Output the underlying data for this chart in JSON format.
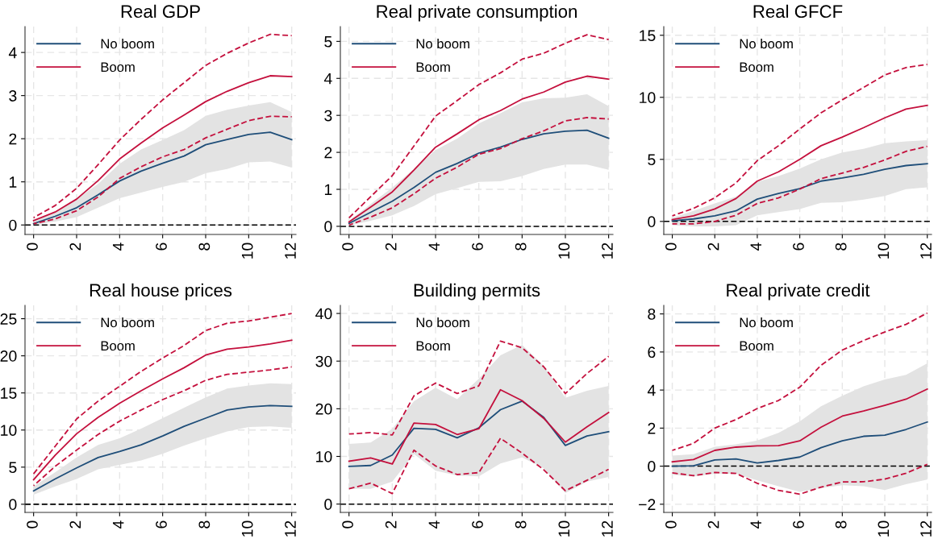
{
  "chart_data": [
    {
      "type": "line",
      "title": "Real GDP",
      "x": [
        0,
        1,
        2,
        3,
        4,
        5,
        6,
        7,
        8,
        9,
        10,
        11,
        12
      ],
      "xlim": [
        -0.4,
        12.2
      ],
      "xticks": [
        0,
        2,
        4,
        6,
        8,
        10,
        12
      ],
      "ylim": [
        -0.22,
        4.6
      ],
      "yticks": [
        0,
        1,
        2,
        3,
        4
      ],
      "grid": true,
      "legend": "top left",
      "ref_lines": [
        {
          "axis": "y",
          "value": 0,
          "color": "#000000",
          "line_style": "dashed"
        }
      ],
      "series": [
        {
          "name": "No boom",
          "color": "#1f4e79",
          "line_style": "solid",
          "values": [
            0.03,
            0.2,
            0.4,
            0.7,
            1.02,
            1.25,
            1.43,
            1.6,
            1.86,
            1.98,
            2.1,
            2.15,
            1.98
          ],
          "lower": [
            0.0,
            0.08,
            0.18,
            0.4,
            0.62,
            0.75,
            0.88,
            1.0,
            1.2,
            1.3,
            1.45,
            1.47,
            1.33
          ],
          "upper": [
            0.08,
            0.3,
            0.6,
            0.95,
            1.42,
            1.75,
            1.97,
            2.2,
            2.53,
            2.67,
            2.77,
            2.85,
            2.62
          ]
        },
        {
          "name": "Boom",
          "color": "#c4103d",
          "line_style": "solid",
          "values": [
            0.1,
            0.3,
            0.6,
            1.03,
            1.53,
            1.9,
            2.25,
            2.55,
            2.86,
            3.1,
            3.3,
            3.46,
            3.44
          ]
        },
        {
          "color": "#c4103d",
          "line_style": "dashed",
          "values": [
            0.17,
            0.45,
            0.85,
            1.4,
            1.97,
            2.45,
            2.9,
            3.3,
            3.7,
            3.98,
            4.22,
            4.42,
            4.39
          ]
        },
        {
          "color": "#c4103d",
          "line_style": "dashed",
          "values": [
            0.03,
            0.14,
            0.33,
            0.65,
            1.08,
            1.35,
            1.58,
            1.75,
            2.02,
            2.22,
            2.42,
            2.52,
            2.51
          ]
        }
      ]
    },
    {
      "type": "line",
      "title": "Real private consumption",
      "x": [
        0,
        1,
        2,
        3,
        4,
        5,
        6,
        7,
        8,
        9,
        10,
        11,
        12
      ],
      "xlim": [
        -0.4,
        12.2
      ],
      "xticks": [
        0,
        2,
        4,
        6,
        8,
        10,
        12
      ],
      "ylim": [
        -0.22,
        5.4
      ],
      "yticks": [
        0,
        1,
        2,
        3,
        4,
        5
      ],
      "grid": true,
      "legend": "top left",
      "ref_lines": [
        {
          "axis": "y",
          "value": 0,
          "color": "#000000",
          "line_style": "dashed"
        }
      ],
      "series": [
        {
          "name": "No boom",
          "color": "#1f4e79",
          "line_style": "solid",
          "values": [
            0.08,
            0.38,
            0.68,
            1.05,
            1.46,
            1.7,
            1.98,
            2.14,
            2.35,
            2.5,
            2.57,
            2.6,
            2.38
          ],
          "lower": [
            0.02,
            0.15,
            0.3,
            0.55,
            0.87,
            1.03,
            1.2,
            1.22,
            1.36,
            1.55,
            1.67,
            1.67,
            1.53
          ],
          "upper": [
            0.15,
            0.6,
            1.05,
            1.55,
            2.06,
            2.37,
            2.78,
            3.06,
            3.35,
            3.46,
            3.48,
            3.57,
            3.25
          ]
        },
        {
          "name": "Boom",
          "color": "#c4103d",
          "line_style": "solid",
          "values": [
            0.12,
            0.52,
            0.93,
            1.52,
            2.14,
            2.5,
            2.88,
            3.13,
            3.44,
            3.63,
            3.9,
            4.06,
            3.98
          ]
        },
        {
          "color": "#c4103d",
          "line_style": "dashed",
          "values": [
            0.23,
            0.8,
            1.37,
            2.17,
            2.98,
            3.4,
            3.83,
            4.15,
            4.52,
            4.68,
            4.95,
            5.18,
            5.05
          ]
        },
        {
          "color": "#c4103d",
          "line_style": "dashed",
          "values": [
            0.03,
            0.25,
            0.5,
            0.88,
            1.3,
            1.6,
            1.95,
            2.1,
            2.37,
            2.58,
            2.85,
            2.94,
            2.9
          ]
        }
      ]
    },
    {
      "type": "line",
      "title": "Real GFCF",
      "x": [
        0,
        1,
        2,
        3,
        4,
        5,
        6,
        7,
        8,
        9,
        10,
        11,
        12
      ],
      "xlim": [
        -0.4,
        12.2
      ],
      "xticks": [
        0,
        2,
        4,
        6,
        8,
        10,
        12
      ],
      "ylim": [
        -1.05,
        15.7
      ],
      "yticks": [
        0,
        5,
        10,
        15
      ],
      "grid": true,
      "legend": "top left",
      "ref_lines": [
        {
          "axis": "y",
          "value": 0,
          "color": "#000000",
          "line_style": "dashed"
        }
      ],
      "series": [
        {
          "name": "No boom",
          "color": "#1f4e79",
          "line_style": "solid",
          "values": [
            0.05,
            0.2,
            0.45,
            0.85,
            1.8,
            2.25,
            2.65,
            3.25,
            3.5,
            3.8,
            4.2,
            4.5,
            4.65
          ],
          "lower": [
            -0.3,
            -0.4,
            -0.4,
            -0.3,
            0.5,
            0.75,
            1.0,
            1.5,
            1.55,
            1.75,
            2.05,
            2.6,
            2.75
          ],
          "upper": [
            0.3,
            0.85,
            1.45,
            2.0,
            3.2,
            3.65,
            4.25,
            5.0,
            5.55,
            5.85,
            6.3,
            6.45,
            6.55
          ]
        },
        {
          "name": "Boom",
          "color": "#c4103d",
          "line_style": "solid",
          "values": [
            0.15,
            0.45,
            1.0,
            1.85,
            3.25,
            4.0,
            5.0,
            6.1,
            6.8,
            7.55,
            8.35,
            9.05,
            9.35
          ]
        },
        {
          "color": "#c4103d",
          "line_style": "dashed",
          "values": [
            0.45,
            1.05,
            1.9,
            3.1,
            4.9,
            6.1,
            7.45,
            8.75,
            9.8,
            10.8,
            11.8,
            12.4,
            12.65
          ]
        },
        {
          "color": "#c4103d",
          "line_style": "dashed",
          "values": [
            -0.2,
            -0.2,
            0.0,
            0.5,
            1.45,
            1.9,
            2.6,
            3.45,
            3.9,
            4.35,
            4.95,
            5.65,
            6.05
          ]
        }
      ]
    },
    {
      "type": "line",
      "title": "Real house prices",
      "x": [
        0,
        1,
        2,
        3,
        4,
        5,
        6,
        7,
        8,
        9,
        10,
        11,
        12
      ],
      "xlim": [
        -0.4,
        12.2
      ],
      "xticks": [
        0,
        2,
        4,
        6,
        8,
        10,
        12
      ],
      "ylim": [
        -1.1,
        26.8
      ],
      "yticks": [
        0,
        5,
        10,
        15,
        20,
        25
      ],
      "grid": true,
      "legend": "top left",
      "ref_lines": [
        {
          "axis": "y",
          "value": 0,
          "color": "#000000",
          "line_style": "dashed"
        }
      ],
      "series": [
        {
          "name": "No boom",
          "color": "#1f4e79",
          "line_style": "solid",
          "values": [
            1.8,
            3.4,
            4.9,
            6.3,
            7.1,
            8.0,
            9.2,
            10.5,
            11.6,
            12.7,
            13.1,
            13.3,
            13.2
          ],
          "lower": [
            1.3,
            2.4,
            3.4,
            4.7,
            5.3,
            5.9,
            6.8,
            7.9,
            8.9,
            9.8,
            10.4,
            10.5,
            10.3
          ],
          "upper": [
            2.4,
            4.3,
            6.3,
            8.0,
            8.9,
            10.2,
            11.6,
            13.0,
            14.4,
            15.6,
            16.0,
            16.3,
            16.2
          ]
        },
        {
          "name": "Boom",
          "color": "#c4103d",
          "line_style": "solid",
          "values": [
            3.3,
            6.6,
            9.5,
            11.7,
            13.6,
            15.3,
            16.9,
            18.4,
            20.1,
            20.9,
            21.2,
            21.6,
            22.1
          ]
        },
        {
          "color": "#c4103d",
          "line_style": "dashed",
          "values": [
            4.1,
            7.8,
            11.5,
            13.9,
            15.9,
            17.9,
            19.7,
            21.4,
            23.4,
            24.4,
            24.7,
            25.2,
            25.7
          ]
        },
        {
          "color": "#c4103d",
          "line_style": "dashed",
          "values": [
            2.5,
            5.1,
            7.3,
            9.4,
            11.2,
            12.7,
            14.1,
            15.3,
            16.7,
            17.5,
            17.8,
            18.1,
            18.5
          ]
        }
      ]
    },
    {
      "type": "line",
      "title": "Building permits",
      "x": [
        0,
        1,
        2,
        3,
        4,
        5,
        6,
        7,
        8,
        9,
        10,
        11,
        12
      ],
      "xlim": [
        -0.4,
        12.2
      ],
      "xticks": [
        0,
        2,
        4,
        6,
        8,
        10,
        12
      ],
      "ylim": [
        -1.75,
        41.7
      ],
      "yticks": [
        0,
        10,
        20,
        30,
        40
      ],
      "grid": true,
      "legend": "top left",
      "ref_lines": [
        {
          "axis": "y",
          "value": 0,
          "color": "#000000",
          "line_style": "dashed"
        }
      ],
      "series": [
        {
          "name": "No boom",
          "color": "#1f4e79",
          "line_style": "solid",
          "values": [
            7.9,
            8.1,
            10.3,
            15.9,
            15.7,
            13.9,
            16.0,
            19.8,
            21.6,
            18.2,
            12.3,
            14.3,
            15.2
          ],
          "lower": [
            3.2,
            3.2,
            4.7,
            10.5,
            7.0,
            6.0,
            5.8,
            8.5,
            9.8,
            7.5,
            2.3,
            4.7,
            5.7
          ],
          "upper": [
            12.6,
            12.9,
            15.8,
            21.6,
            24.4,
            22.0,
            26.3,
            31.2,
            33.4,
            29.0,
            22.3,
            23.8,
            24.8
          ]
        },
        {
          "name": "Boom",
          "color": "#c4103d",
          "line_style": "solid",
          "values": [
            9.0,
            9.7,
            8.4,
            17.0,
            16.7,
            14.6,
            15.8,
            24.0,
            21.7,
            18.0,
            13.0,
            16.2,
            19.2
          ]
        },
        {
          "color": "#c4103d",
          "line_style": "dashed",
          "values": [
            14.7,
            15.0,
            14.5,
            22.7,
            25.4,
            23.2,
            24.8,
            34.2,
            32.8,
            28.8,
            23.2,
            27.4,
            31.0
          ]
        },
        {
          "color": "#c4103d",
          "line_style": "dashed",
          "values": [
            3.2,
            4.4,
            2.2,
            11.3,
            8.0,
            6.2,
            6.6,
            13.8,
            10.7,
            7.2,
            2.8,
            5.0,
            7.3
          ]
        }
      ]
    },
    {
      "type": "line",
      "title": "Real private credit",
      "x": [
        0,
        1,
        2,
        3,
        4,
        5,
        6,
        7,
        8,
        9,
        10,
        11,
        12
      ],
      "xlim": [
        -0.4,
        12.2
      ],
      "xticks": [
        0,
        2,
        4,
        6,
        8,
        10,
        12
      ],
      "ylim": [
        -2.43,
        8.45
      ],
      "yticks": [
        {
          "value": -2,
          "label": "−2"
        },
        0,
        2,
        4,
        6,
        8
      ],
      "grid": true,
      "legend": "top left",
      "ref_lines": [
        {
          "axis": "y",
          "value": 0,
          "color": "#000000",
          "line_style": "dashed"
        }
      ],
      "series": [
        {
          "name": "No boom",
          "color": "#1f4e79",
          "line_style": "solid",
          "values": [
            0.0,
            0.02,
            0.33,
            0.38,
            0.17,
            0.3,
            0.48,
            0.97,
            1.33,
            1.57,
            1.63,
            1.93,
            2.32
          ],
          "lower": [
            -0.45,
            -0.55,
            -0.4,
            -0.4,
            -0.75,
            -1.05,
            -1.35,
            -1.15,
            -1.0,
            -1.05,
            -1.25,
            -0.95,
            -0.7
          ],
          "upper": [
            0.55,
            0.63,
            1.02,
            1.15,
            1.35,
            1.75,
            2.35,
            3.15,
            3.7,
            4.2,
            4.55,
            4.8,
            5.4
          ]
        },
        {
          "name": "Boom",
          "color": "#c4103d",
          "line_style": "solid",
          "values": [
            0.23,
            0.35,
            0.83,
            1.0,
            1.07,
            1.08,
            1.33,
            2.05,
            2.63,
            2.9,
            3.2,
            3.52,
            4.05
          ]
        },
        {
          "color": "#c4103d",
          "line_style": "dashed",
          "values": [
            0.83,
            1.2,
            2.0,
            2.45,
            3.03,
            3.45,
            4.15,
            5.3,
            6.1,
            6.6,
            7.05,
            7.45,
            8.05
          ]
        },
        {
          "color": "#c4103d",
          "line_style": "dashed",
          "values": [
            -0.35,
            -0.5,
            -0.33,
            -0.38,
            -0.9,
            -1.27,
            -1.47,
            -1.1,
            -0.83,
            -0.82,
            -0.68,
            -0.37,
            0.1
          ]
        }
      ]
    }
  ]
}
